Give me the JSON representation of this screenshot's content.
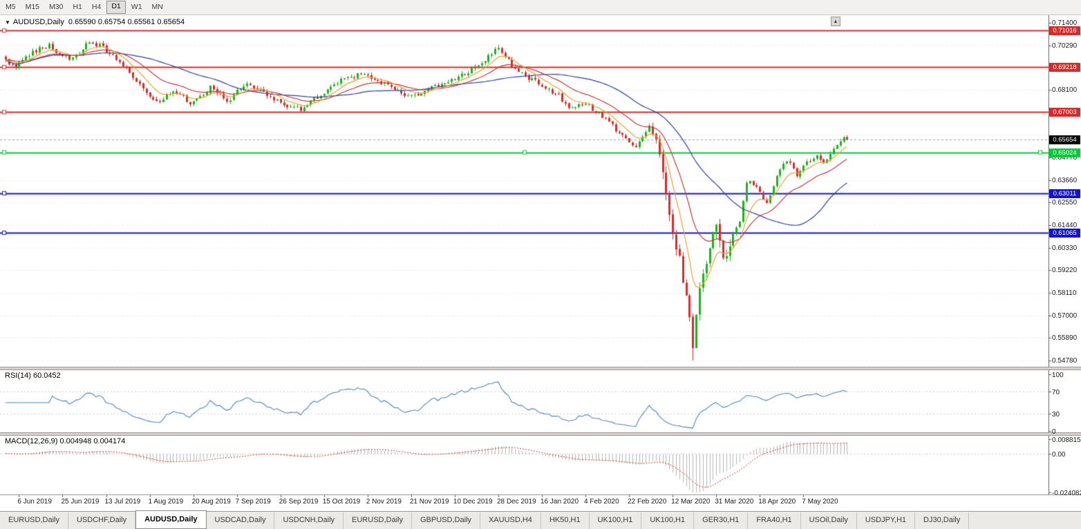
{
  "toolbar": {
    "timeframes": [
      "M5",
      "M15",
      "M30",
      "H1",
      "H4",
      "D1",
      "W1",
      "MN"
    ],
    "active": "D1"
  },
  "scroll_button": "▲",
  "chart": {
    "dropdown_icon": "▼",
    "symbol_label": "AUDUSD,Daily",
    "ohlc_label": "0.65590 0.65754 0.65561 0.65654",
    "price_axis": {
      "min": 0.5478,
      "max": 0.714,
      "ticks": [
        "0.71400",
        "0.70290",
        "0.68100",
        "0.64770",
        "0.63660",
        "0.62550",
        "0.61440",
        "0.60330",
        "0.59220",
        "0.58110",
        "0.57000",
        "0.55890",
        "0.54780"
      ]
    },
    "levels": [
      {
        "price": 0.71016,
        "label": "0.71016",
        "color": "#d52b2b"
      },
      {
        "price": 0.69218,
        "label": "0.69218",
        "color": "#d52b2b"
      },
      {
        "price": 0.67003,
        "label": "0.67003",
        "color": "#d52b2b"
      },
      {
        "price": 0.65024,
        "label": "0.65024",
        "color": "#00cc33",
        "handles": true
      },
      {
        "price": 0.63011,
        "label": "0.63011",
        "color": "#1414cc"
      },
      {
        "price": 0.61065,
        "label": "0.61065",
        "color": "#1414cc"
      }
    ],
    "current_price": {
      "value": 0.65654,
      "label": "0.65654",
      "bg": "#000000"
    },
    "x_labels": [
      "6 Jun 2019",
      "25 Jun 2019",
      "13 Jul 2019",
      "1 Aug 2019",
      "20 Aug 2019",
      "7 Sep 2019",
      "26 Sep 2019",
      "15 Oct 2019",
      "2 Nov 2019",
      "21 Nov 2019",
      "10 Dec 2019",
      "28 Dec 2019",
      "16 Jan 2020",
      "4 Feb 2020",
      "22 Feb 2020",
      "12 Mar 2020",
      "31 Mar 2020",
      "18 Apr 2020",
      "7 May 2020"
    ],
    "candles": {
      "count": 252,
      "up_color": "#1cb21c",
      "down_color": "#d62b2b",
      "anchors": [
        [
          0,
          0.6955
        ],
        [
          3,
          0.692
        ],
        [
          6,
          0.6975
        ],
        [
          10,
          0.701
        ],
        [
          13,
          0.703
        ],
        [
          16,
          0.6985
        ],
        [
          20,
          0.696
        ],
        [
          24,
          0.7035
        ],
        [
          28,
          0.703
        ],
        [
          31,
          0.699
        ],
        [
          34,
          0.694
        ],
        [
          37,
          0.69
        ],
        [
          40,
          0.683
        ],
        [
          43,
          0.6775
        ],
        [
          46,
          0.6745
        ],
        [
          49,
          0.68
        ],
        [
          52,
          0.679
        ],
        [
          55,
          0.6735
        ],
        [
          58,
          0.6775
        ],
        [
          61,
          0.682
        ],
        [
          64,
          0.6785
        ],
        [
          66,
          0.6745
        ],
        [
          69,
          0.68
        ],
        [
          72,
          0.685
        ],
        [
          75,
          0.6815
        ],
        [
          78,
          0.679
        ],
        [
          81,
          0.6755
        ],
        [
          84,
          0.673
        ],
        [
          88,
          0.6715
        ],
        [
          91,
          0.675
        ],
        [
          94,
          0.6785
        ],
        [
          97,
          0.682
        ],
        [
          100,
          0.6855
        ],
        [
          104,
          0.688
        ],
        [
          107,
          0.6895
        ],
        [
          110,
          0.6865
        ],
        [
          113,
          0.684
        ],
        [
          117,
          0.6805
        ],
        [
          120,
          0.678
        ],
        [
          123,
          0.679
        ],
        [
          126,
          0.6815
        ],
        [
          129,
          0.6835
        ],
        [
          132,
          0.685
        ],
        [
          135,
          0.6875
        ],
        [
          138,
          0.69
        ],
        [
          141,
          0.6935
        ],
        [
          143,
          0.696
        ],
        [
          145,
          0.699
        ],
        [
          147,
          0.702
        ],
        [
          149,
          0.6975
        ],
        [
          151,
          0.693
        ],
        [
          154,
          0.689
        ],
        [
          156,
          0.687
        ],
        [
          159,
          0.6845
        ],
        [
          162,
          0.681
        ],
        [
          165,
          0.678
        ],
        [
          167,
          0.674
        ],
        [
          169,
          0.672
        ],
        [
          171,
          0.6745
        ],
        [
          174,
          0.673
        ],
        [
          177,
          0.6695
        ],
        [
          180,
          0.6655
        ],
        [
          182,
          0.6615
        ],
        [
          184,
          0.658
        ],
        [
          186,
          0.6545
        ],
        [
          188,
          0.652
        ],
        [
          190,
          0.6575
        ],
        [
          192,
          0.663
        ],
        [
          194,
          0.6555
        ],
        [
          195,
          0.648
        ],
        [
          196,
          0.639
        ],
        [
          197,
          0.629
        ],
        [
          198,
          0.619
        ],
        [
          199,
          0.612
        ],
        [
          200,
          0.603
        ],
        [
          201,
          0.598
        ],
        [
          202,
          0.588
        ],
        [
          203,
          0.579
        ],
        [
          204,
          0.568
        ],
        [
          205,
          0.556
        ],
        [
          206,
          0.571
        ],
        [
          207,
          0.583
        ],
        [
          208,
          0.59
        ],
        [
          209,
          0.596
        ],
        [
          210,
          0.605
        ],
        [
          211,
          0.61
        ],
        [
          212,
          0.614
        ],
        [
          213,
          0.606
        ],
        [
          214,
          0.6
        ],
        [
          215,
          0.597
        ],
        [
          216,
          0.604
        ],
        [
          217,
          0.609
        ],
        [
          218,
          0.613
        ],
        [
          219,
          0.617
        ],
        [
          220,
          0.626
        ],
        [
          221,
          0.635
        ],
        [
          222,
          0.6365
        ],
        [
          223,
          0.6345
        ],
        [
          224,
          0.633
        ],
        [
          225,
          0.63
        ],
        [
          226,
          0.627
        ],
        [
          227,
          0.625
        ],
        [
          228,
          0.629
        ],
        [
          229,
          0.633
        ],
        [
          230,
          0.638
        ],
        [
          231,
          0.641
        ],
        [
          232,
          0.644
        ],
        [
          233,
          0.6455
        ],
        [
          234,
          0.644
        ],
        [
          235,
          0.642
        ],
        [
          236,
          0.6395
        ],
        [
          237,
          0.641
        ],
        [
          238,
          0.643
        ],
        [
          239,
          0.645
        ],
        [
          240,
          0.6465
        ],
        [
          241,
          0.648
        ],
        [
          242,
          0.649
        ],
        [
          243,
          0.6475
        ],
        [
          244,
          0.646
        ],
        [
          245,
          0.647
        ],
        [
          246,
          0.649
        ],
        [
          247,
          0.651
        ],
        [
          248,
          0.653
        ],
        [
          249,
          0.6555
        ],
        [
          250,
          0.657
        ],
        [
          251,
          0.65654
        ]
      ],
      "low_wick": {
        "index": 205,
        "price": 0.5478
      },
      "high_wick": {
        "index": 147,
        "price": 0.7032
      }
    },
    "moving_averages": [
      {
        "type": "ema",
        "period": 8,
        "color": "#f0a030"
      },
      {
        "type": "ema",
        "period": 20,
        "color": "#c03a3a"
      },
      {
        "type": "sma",
        "period": 40,
        "color": "#2b3f9e"
      }
    ]
  },
  "indicators": {
    "rsi": {
      "title": "RSI(14) 60.0452",
      "period": 14,
      "value": 60.0452,
      "axis": [
        "100",
        "70",
        "30",
        "0"
      ],
      "levels": [
        70,
        30
      ],
      "color": "#4f81bd"
    },
    "macd": {
      "title": "MACD(12,26,9) 0.004948 0.004174",
      "fast": 12,
      "slow": 26,
      "signal": 9,
      "main_value": 0.004948,
      "signal_value": 0.004174,
      "axis": [
        {
          "value": 0.008815,
          "label": "0.008815"
        },
        {
          "value": 0,
          "label": "0.00"
        },
        {
          "value": -0.024082,
          "label": "-0.024082"
        }
      ],
      "hist_color": "#b4b4b4",
      "signal_color": "#cc3333"
    }
  },
  "tabs": {
    "active_index": 2,
    "items": [
      "EURUSD,Daily",
      "USDCHF,Daily",
      "AUDUSD,Daily",
      "USDCAD,Daily",
      "USDCNH,Daily",
      "EURUSD,Daily",
      "GBPUSD,Daily",
      "XAUUSD,H4",
      "HK50,H1",
      "UK100,H1",
      "UK100,H1",
      "GER30,H1",
      "FRA40,H1",
      "USOil,Daily",
      "USDJPY,H1",
      "DJ30,Daily"
    ]
  },
  "colors": {
    "background": "#ffffff",
    "grid": "#dcdcdc",
    "axis_text": "#1a1a1a"
  }
}
